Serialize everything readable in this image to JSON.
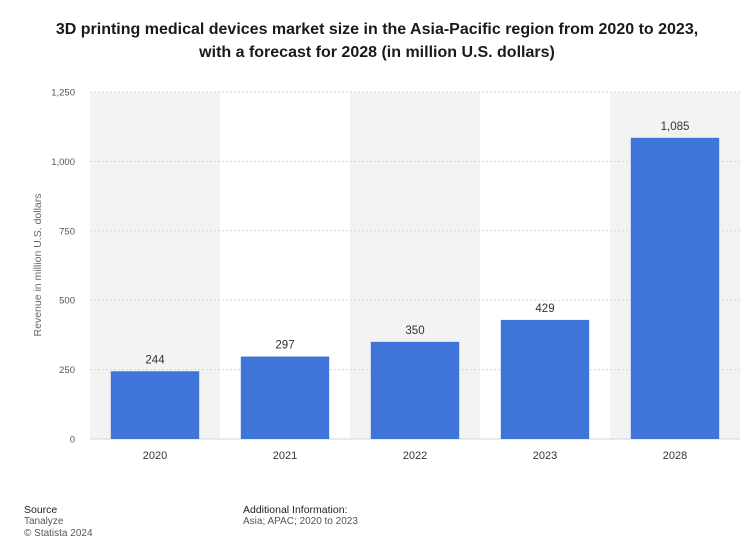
{
  "title": {
    "line1": "3D printing medical devices market size in the Asia-Pacific region from 2020 to 2023,",
    "line2": "with a forecast for 2028 (in million U.S. dollars)"
  },
  "footer": {
    "source_heading": "Source",
    "source_name": "Tanalyze",
    "copyright": "© Statista 2024",
    "info_heading": "Additional Information:",
    "info_text": "Asia; APAC; 2020 to 2023"
  },
  "colors": {
    "bar": "#3f74d8",
    "grid": "#d6d6d6",
    "band": "#f3f3f3"
  },
  "chart_data": {
    "type": "bar",
    "title": "3D printing medical devices market size in the Asia-Pacific region from 2020 to 2023, with a forecast for 2028 (in million U.S. dollars)",
    "xlabel": "",
    "ylabel": "Revenue in million U.S. dollars",
    "categories": [
      "2020",
      "2021",
      "2022",
      "2023",
      "2028"
    ],
    "values": [
      244,
      297,
      350,
      429,
      1085
    ],
    "value_labels": [
      "244",
      "297",
      "350",
      "429",
      "1,085"
    ],
    "ylim": [
      0,
      1250
    ],
    "yticks": [
      0,
      250,
      500,
      750,
      1000,
      1250
    ],
    "ytick_labels": [
      "0",
      "250",
      "500",
      "750",
      "1,000",
      "1,250"
    ],
    "grid": true,
    "legend": "none"
  }
}
